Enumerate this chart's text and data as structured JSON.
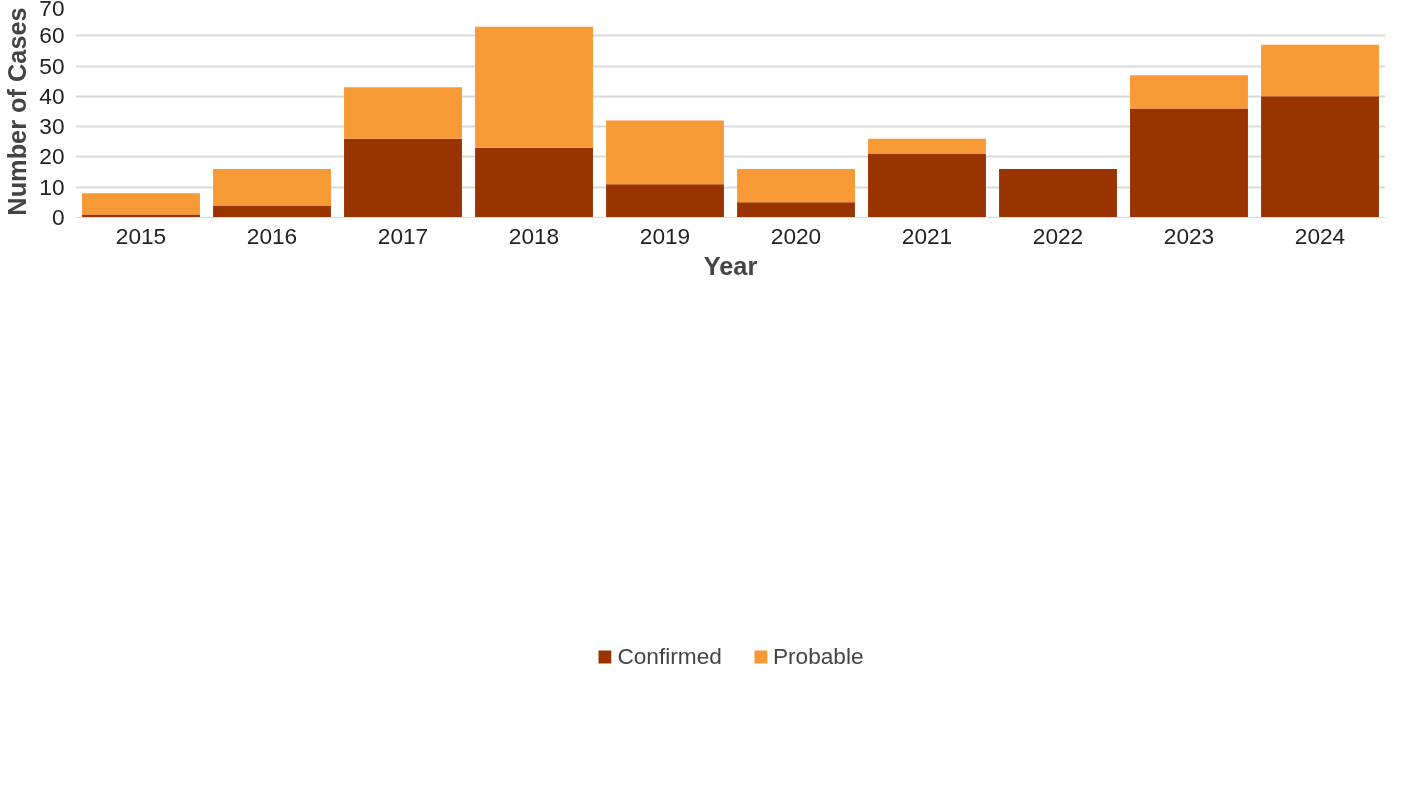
{
  "chart_data": {
    "type": "bar",
    "stacked": true,
    "xlabel": "Year",
    "ylabel": "Number of Cases",
    "categories": [
      "2015",
      "2016",
      "2017",
      "2018",
      "2019",
      "2020",
      "2021",
      "2022",
      "2023",
      "2024"
    ],
    "series": [
      {
        "name": "Confirmed",
        "color": "#993300",
        "values": [
          1,
          4,
          26,
          23,
          11,
          5,
          21,
          16,
          36,
          40
        ]
      },
      {
        "name": "Probable",
        "color": "#f79a35",
        "values": [
          7,
          12,
          17,
          40,
          21,
          11,
          5,
          0,
          11,
          17
        ]
      }
    ],
    "ylim": [
      0,
      70
    ],
    "yticks": [
      0,
      10,
      20,
      30,
      40,
      50,
      60,
      70
    ],
    "grid": "y",
    "legend": "bottom"
  }
}
